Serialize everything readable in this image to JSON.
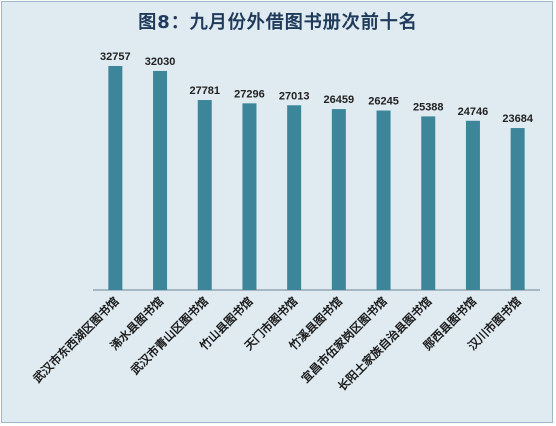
{
  "chart_data": {
    "type": "bar",
    "title": "图8：九月份外借图书册次前十名",
    "categories": [
      "武汉市东西湖区图书馆",
      "浠水县图书馆",
      "武汉市青山区图书馆",
      "竹山县图书馆",
      "天门市图书馆",
      "竹溪县图书馆",
      "宜昌市伍家岗区图书馆",
      "长阳土家族自治县图书馆",
      "郧西县图书馆",
      "汉川市图书馆"
    ],
    "values": [
      32757,
      32030,
      27781,
      27296,
      27013,
      26459,
      26245,
      25388,
      24746,
      23684
    ],
    "data_labels": [
      "32757",
      "32030",
      "27781",
      "27296",
      "27013",
      "26459",
      "26245",
      "25388",
      "24746",
      "23684"
    ],
    "ylim": [
      0,
      35000
    ],
    "grid": false,
    "legend": "none",
    "bar_color": "#3d8599",
    "axis_color": "#6b8796"
  }
}
